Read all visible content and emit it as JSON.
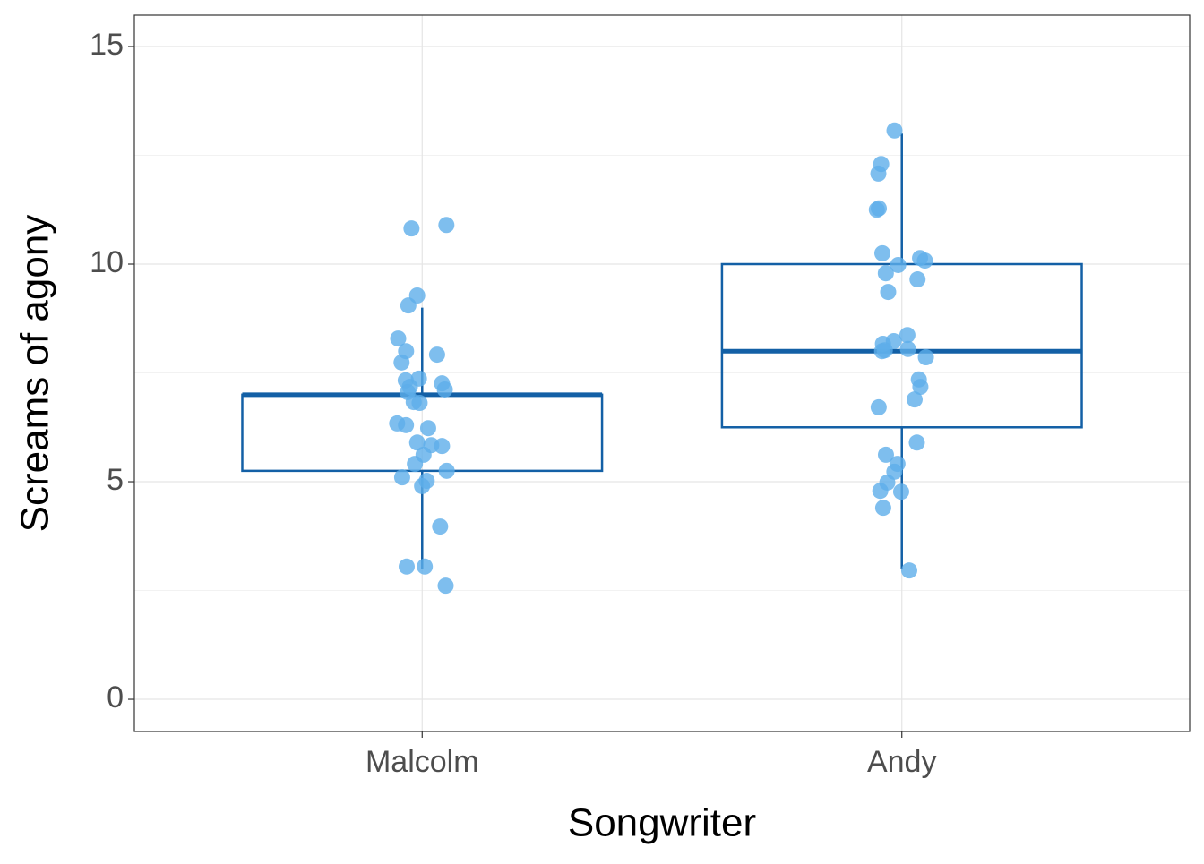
{
  "chart_data": {
    "type": "boxplot",
    "x_label": "Songwriter",
    "y_label": "Screams of agony",
    "categories": [
      "Malcolm",
      "Andy"
    ],
    "boxes": [
      {
        "min": 3,
        "q1": 5.25,
        "median": 7,
        "q3": 7,
        "max": 9
      },
      {
        "min": 3,
        "q1": 6.25,
        "median": 8,
        "q3": 10,
        "max": 13
      }
    ],
    "points": [
      [
        10.9,
        10.82,
        9.28,
        9.05,
        8.29,
        8.0,
        7.92,
        7.74,
        7.37,
        7.33,
        7.26,
        7.18,
        7.12,
        7.06,
        6.83,
        6.81,
        6.34,
        6.3,
        6.23,
        5.9,
        5.84,
        5.82,
        5.62,
        5.41,
        5.25,
        5.1,
        5.02,
        4.9,
        3.97,
        3.05,
        3.05,
        2.61
      ],
      [
        13.07,
        12.3,
        12.08,
        11.28,
        11.25,
        10.25,
        10.14,
        10.08,
        9.98,
        9.79,
        9.65,
        9.36,
        8.37,
        8.23,
        8.17,
        8.05,
        8.02,
        8.0,
        7.86,
        7.35,
        7.18,
        6.89,
        6.71,
        5.9,
        5.62,
        5.41,
        5.23,
        4.98,
        4.79,
        4.77,
        4.4,
        2.96
      ]
    ],
    "box_color": "#1360a6",
    "point_color": "#5eaeea",
    "ylim": [
      -0.74,
      15.72
    ],
    "yticks": [
      0,
      5,
      10,
      15
    ],
    "minor_yticks": [
      2.5,
      7.5,
      12.5
    ],
    "grid": true
  }
}
